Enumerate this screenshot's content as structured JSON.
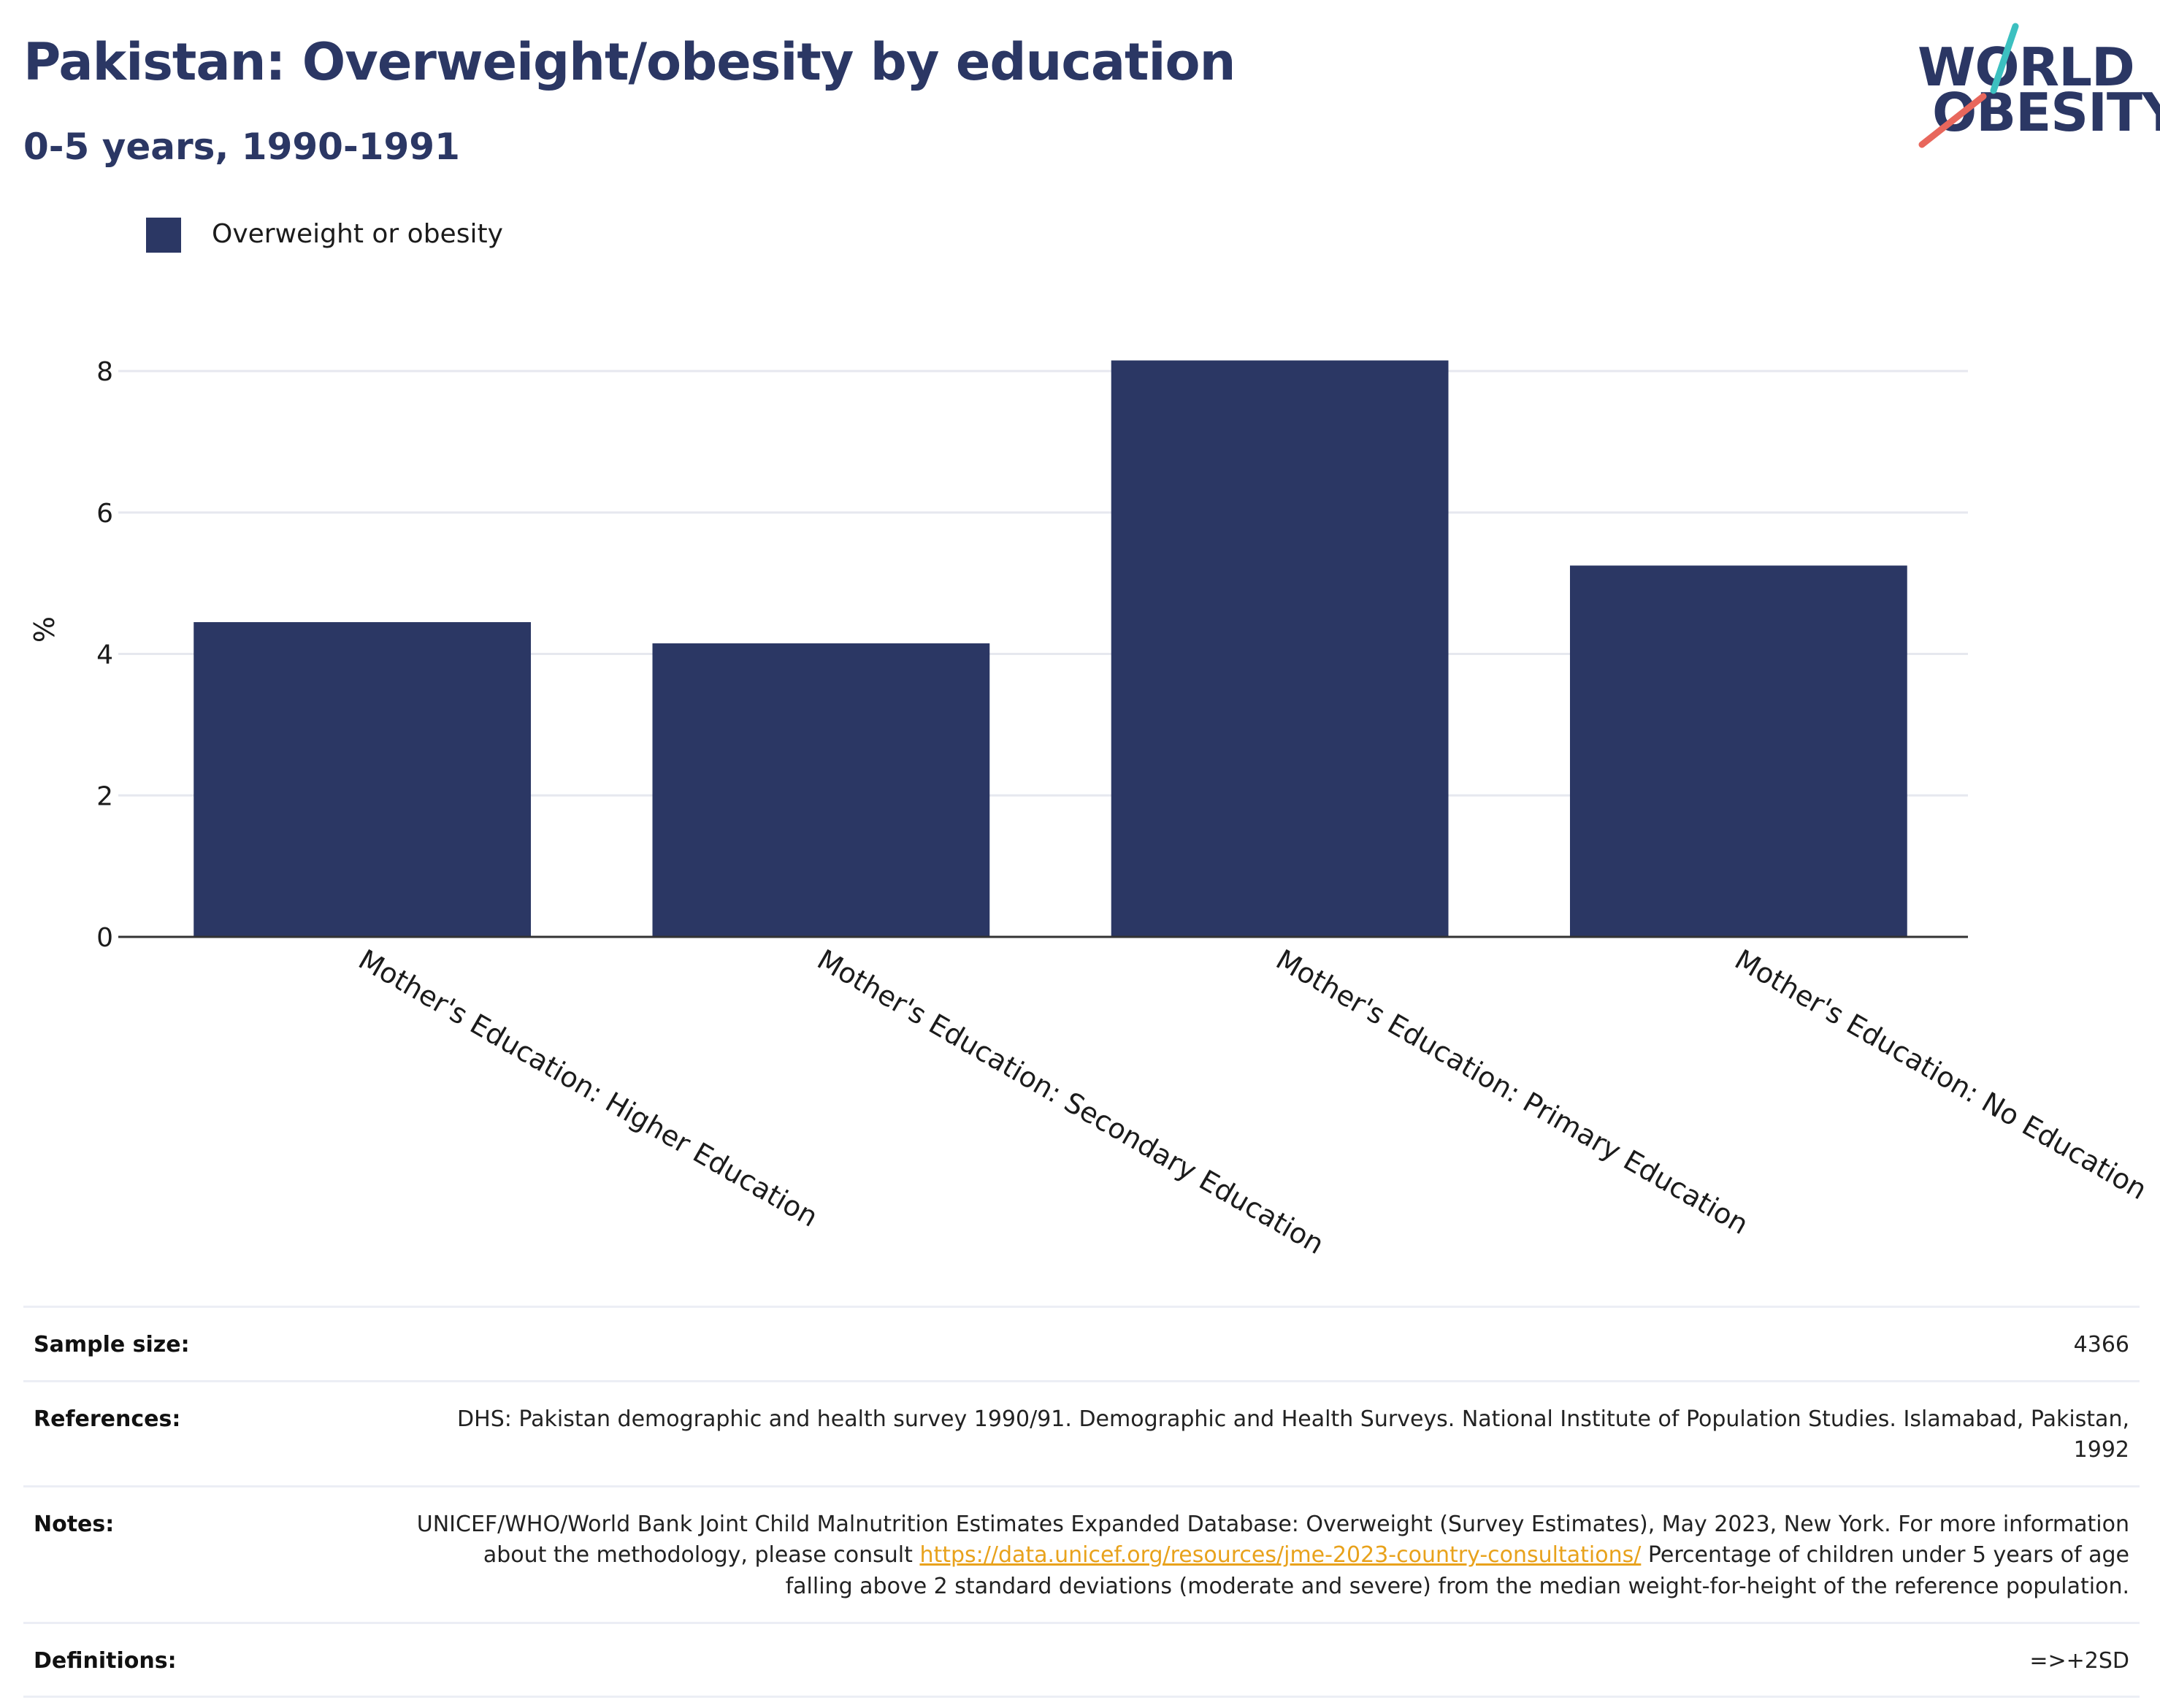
{
  "header": {
    "title": "Pakistan: Overweight/obesity by education",
    "subtitle": "0-5 years, 1990-1991"
  },
  "logo": {
    "line1": "WORLD",
    "line2": "OBESITY",
    "accent_teal": "#3cc0c0",
    "accent_coral": "#e8675c"
  },
  "chart_data": {
    "type": "bar",
    "categories": [
      "Mother's Education: Higher Education",
      "Mother's Education: Secondary Education",
      "Mother's Education: Primary Education",
      "Mother's Education: No Education"
    ],
    "series": [
      {
        "name": "Overweight or obesity",
        "values": [
          4.45,
          4.15,
          8.15,
          5.25
        ],
        "color": "#2b3764"
      }
    ],
    "ylabel": "%",
    "xlabel": "",
    "ylim": [
      0,
      8.6
    ],
    "yticks": [
      0,
      2,
      4,
      6,
      8
    ],
    "grid": true,
    "legend": "top-left"
  },
  "info": {
    "sample_size": {
      "label": "Sample size:",
      "value": "4366"
    },
    "references": {
      "label": "References:",
      "value": "DHS: Pakistan demographic and health survey 1990/91. Demographic and Health Surveys. National Institute of Population Studies. Islamabad, Pakistan, 1992"
    },
    "notes": {
      "label": "Notes:",
      "text_before": "UNICEF/WHO/World Bank Joint Child Malnutrition Estimates Expanded Database: Overweight (Survey Estimates), May 2023, New York. For more information about the methodology, please consult ",
      "link": "https://data.unicef.org/resources/jme-2023-country-consultations/",
      "text_after": " Percentage of children under 5 years of age falling above 2 standard deviations (moderate and severe) from the median weight-for-height of the reference population."
    },
    "definitions": {
      "label": "Definitions:",
      "value": "=>+2SD"
    }
  }
}
